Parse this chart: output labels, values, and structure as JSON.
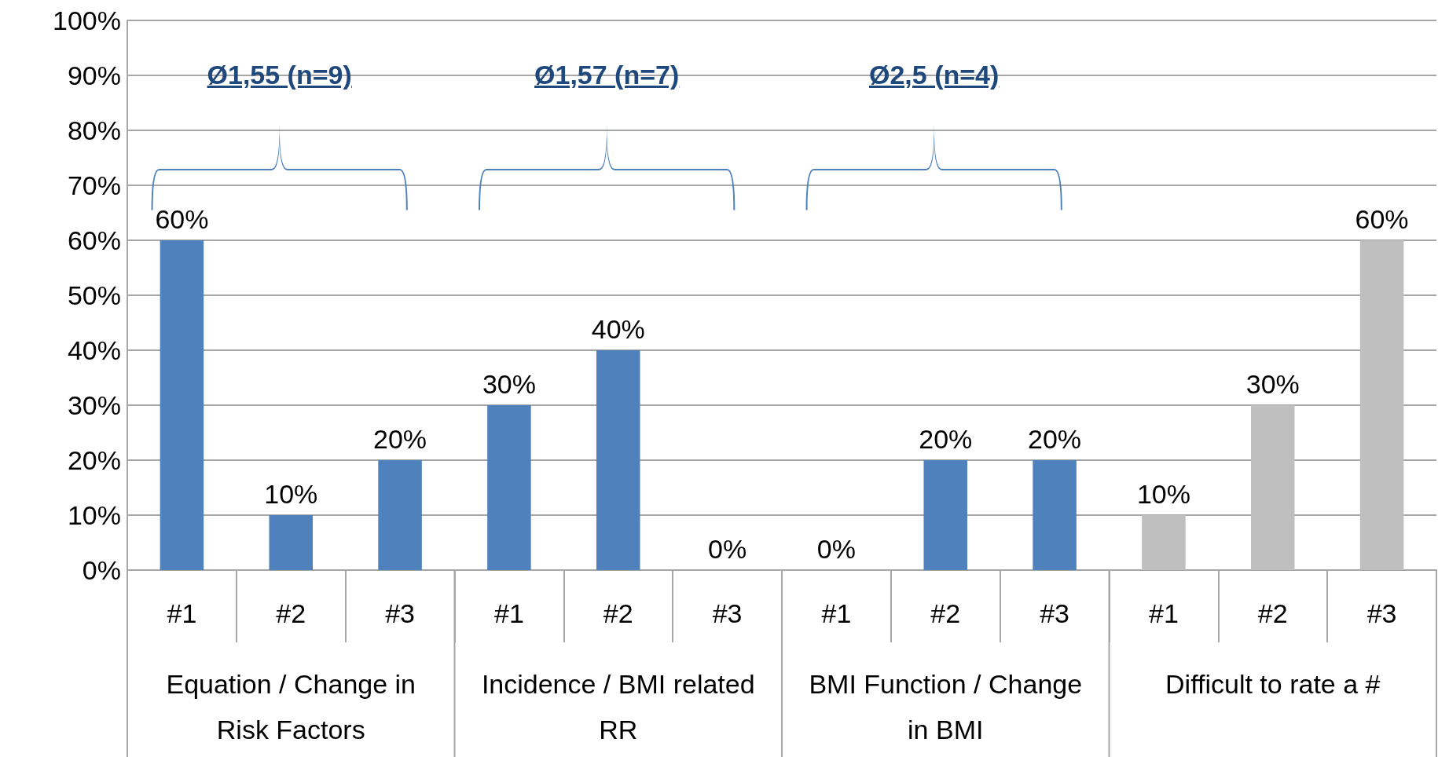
{
  "chart_data": {
    "type": "bar",
    "categories": [
      "#1",
      "#2",
      "#3",
      "#1",
      "#2",
      "#3",
      "#1",
      "#2",
      "#3",
      "#1",
      "#2",
      "#3"
    ],
    "values": [
      60,
      10,
      20,
      30,
      40,
      0,
      0,
      20,
      20,
      10,
      30,
      60
    ],
    "colors": [
      "#4f81bd",
      "#4f81bd",
      "#4f81bd",
      "#4f81bd",
      "#4f81bd",
      "#4f81bd",
      "#4f81bd",
      "#4f81bd",
      "#4f81bd",
      "#bfbfbf",
      "#bfbfbf",
      "#bfbfbf"
    ],
    "value_labels": [
      "60%",
      "10%",
      "20%",
      "30%",
      "40%",
      "0%",
      "0%",
      "20%",
      "20%",
      "10%",
      "30%",
      "60%"
    ],
    "ylim": [
      0,
      100
    ],
    "yticks": [
      {
        "value": 0,
        "label": "0%"
      },
      {
        "value": 10,
        "label": "10%"
      },
      {
        "value": 20,
        "label": "20%"
      },
      {
        "value": 30,
        "label": "30%"
      },
      {
        "value": 40,
        "label": "40%"
      },
      {
        "value": 50,
        "label": "50%"
      },
      {
        "value": 60,
        "label": "60%"
      },
      {
        "value": 70,
        "label": "70%"
      },
      {
        "value": 80,
        "label": "80%"
      },
      {
        "value": 90,
        "label": "90%"
      },
      {
        "value": 100,
        "label": "100%"
      }
    ],
    "annotations": [
      "Ø1,55 (n=9)",
      "Ø1,57 (n=7)",
      "Ø2,5 (n=4)",
      "Equation / Change in Risk Factors",
      "Incidence / BMI related RR",
      "BMI Function / Change in BMI",
      "Difficult to rate a #"
    ],
    "grid": "y"
  }
}
